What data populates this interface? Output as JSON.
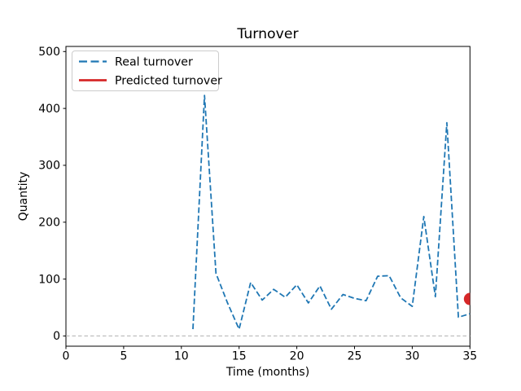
{
  "chart_data": {
    "type": "line",
    "title": "Turnover",
    "xlabel": "Time (months)",
    "ylabel": "Quantity",
    "xlim": [
      0,
      35
    ],
    "ylim": [
      -18,
      509
    ],
    "xticks": [
      0,
      5,
      10,
      15,
      20,
      25,
      30,
      35
    ],
    "yticks": [
      0,
      100,
      200,
      300,
      400,
      500
    ],
    "grid": "off",
    "zero_reference_line": {
      "y": 0,
      "style": "dashed",
      "color": "#b0b0b0"
    },
    "legend": {
      "position": "upper-left",
      "border_color": "#cccccc",
      "background": "#ffffff"
    },
    "series": [
      {
        "name": "Real turnover",
        "type": "line",
        "line_style": "dashed",
        "color": "#1f77b4",
        "x": [
          11,
          12,
          13,
          14,
          15,
          16,
          17,
          18,
          19,
          20,
          21,
          22,
          23,
          24,
          25,
          26,
          27,
          28,
          29,
          30,
          31,
          32,
          33,
          34,
          35
        ],
        "y": [
          12,
          423,
          110,
          58,
          12,
          94,
          63,
          82,
          68,
          90,
          58,
          88,
          47,
          73,
          66,
          62,
          105,
          106,
          67,
          52,
          210,
          69,
          375,
          33,
          39
        ]
      },
      {
        "name": "Predicted turnover",
        "type": "point",
        "line_style": "solid",
        "marker": "circle",
        "color": "#d62728",
        "x": [
          35
        ],
        "y": [
          65
        ]
      }
    ]
  }
}
